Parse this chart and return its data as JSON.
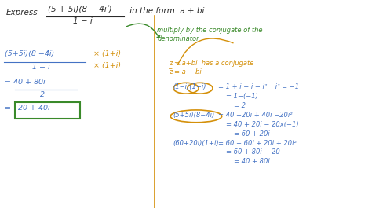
{
  "bg_color": "#ffffff",
  "fig_width": 4.74,
  "fig_height": 2.66,
  "dpi": 100,
  "colors": {
    "black": "#2a2a2a",
    "blue": "#4472c4",
    "orange": "#d4900a",
    "green": "#3a8a2a",
    "box_green": "#3a8a2a"
  },
  "title": {
    "express": "Express",
    "fraction_num": "(5 + 5i)(8 − 4i)",
    "fraction_den": "1 − i",
    "suffix": " in the form  a + bi."
  },
  "green_arrow": {
    "text1": "multiply by the conjugate of the",
    "text2": "denominator"
  },
  "left": {
    "frac_num": "(5+5i)(8 −4i)",
    "frac_den": "1 − i",
    "mult1": "× (1+i)",
    "mult2": "× (1+i)",
    "eq1_num": "= 40 + 80i",
    "eq1_den": "2",
    "eq2": "= 20 + 40i"
  },
  "right": {
    "conj1": "z = a+bi  has a conjugate",
    "conj2": "z̅ = a − bi",
    "step1_lhs": "(1−i)(1+i)",
    "step1_r1": "= 1 + i − i − i²    i² = −1",
    "step1_r2": "= 1−(−1)",
    "step1_r3": "= 2",
    "step2_lhs": "(5+5i)(8−4i)",
    "step2_r1": "= 40 −20i + 40i −20i²",
    "step2_r2": "= 40 + 20i − 20x(−1)",
    "step2_r3": "= 60 + 20i",
    "step3_lhs": "(60+20i)(1+i)",
    "step3_r1": "= 60 + 60i + 20i + 20i²",
    "step3_r2": "= 60 + 80i − 20",
    "step3_r3": "= 40 + 80i"
  }
}
